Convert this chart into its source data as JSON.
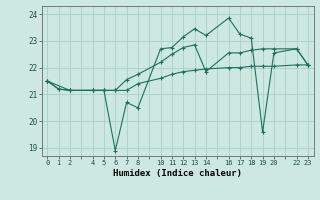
{
  "xlabel": "Humidex (Indice chaleur)",
  "ylabel": "",
  "bg_color": "#cde8e0",
  "grid_color": "#a8cfc5",
  "line_color": "#1a7060",
  "xlim": [
    -0.5,
    23.5
  ],
  "ylim": [
    18.7,
    24.3
  ],
  "yticks": [
    19,
    20,
    21,
    22,
    23,
    24
  ],
  "xticks": [
    0,
    1,
    2,
    4,
    5,
    6,
    7,
    8,
    10,
    11,
    12,
    13,
    14,
    16,
    17,
    18,
    19,
    20,
    22,
    23
  ],
  "line1_x": [
    0,
    2,
    4,
    5,
    6,
    7,
    8,
    10,
    11,
    12,
    13,
    14,
    16,
    17,
    18,
    19,
    20,
    22,
    23
  ],
  "line1_y": [
    21.5,
    21.15,
    21.15,
    21.15,
    21.15,
    21.15,
    21.4,
    21.6,
    21.75,
    21.85,
    21.9,
    21.95,
    22.0,
    22.0,
    22.05,
    22.05,
    22.05,
    22.1,
    22.1
  ],
  "line2_x": [
    0,
    1,
    2,
    4,
    5,
    6,
    7,
    8,
    10,
    11,
    12,
    13,
    14,
    16,
    17,
    18,
    19,
    20,
    22,
    23
  ],
  "line2_y": [
    21.5,
    21.2,
    21.15,
    21.15,
    21.15,
    21.15,
    21.55,
    21.75,
    22.2,
    22.5,
    22.75,
    22.85,
    21.85,
    22.55,
    22.55,
    22.65,
    22.7,
    22.7,
    22.7,
    22.1
  ],
  "line3_x": [
    0,
    1,
    2,
    4,
    5,
    6,
    7,
    8,
    10,
    11,
    12,
    13,
    14,
    16,
    17,
    18,
    19,
    20,
    22,
    23
  ],
  "line3_y": [
    21.5,
    21.2,
    21.15,
    21.15,
    21.15,
    18.9,
    20.7,
    20.5,
    22.7,
    22.75,
    23.15,
    23.45,
    23.2,
    23.85,
    23.25,
    23.1,
    19.6,
    22.55,
    22.7,
    22.1
  ],
  "marker": "+",
  "markersize": 3,
  "linewidth": 0.8
}
